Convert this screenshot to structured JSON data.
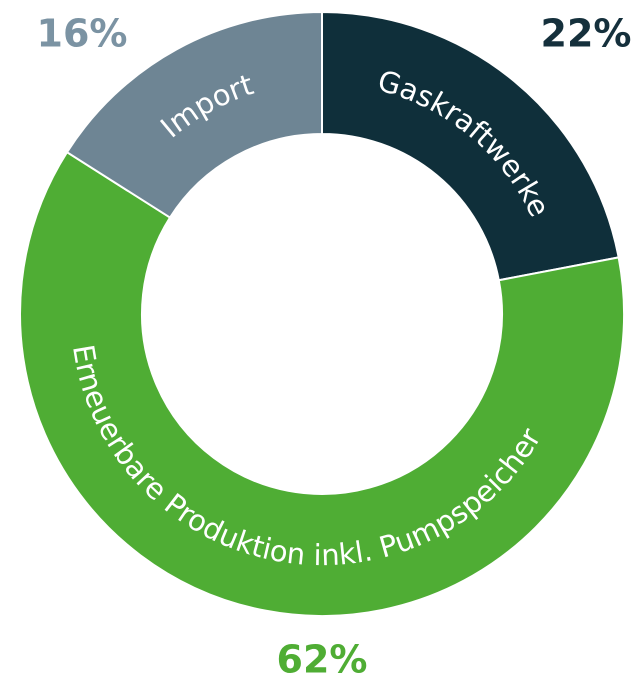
{
  "chart_data": {
    "type": "pie",
    "categories": [
      "Gaskraftwerke",
      "Erneuerbare Produktion inkl. Pumpspeicher",
      "Import"
    ],
    "values": [
      22,
      62,
      16
    ],
    "value_labels": [
      "22%",
      "62%",
      "16%"
    ],
    "colors": [
      "#0f2f3a",
      "#4fad34",
      "#6e8594"
    ],
    "label_colors": [
      "#15303c",
      "#4fad34",
      "#7b93a3"
    ],
    "donut": true
  }
}
